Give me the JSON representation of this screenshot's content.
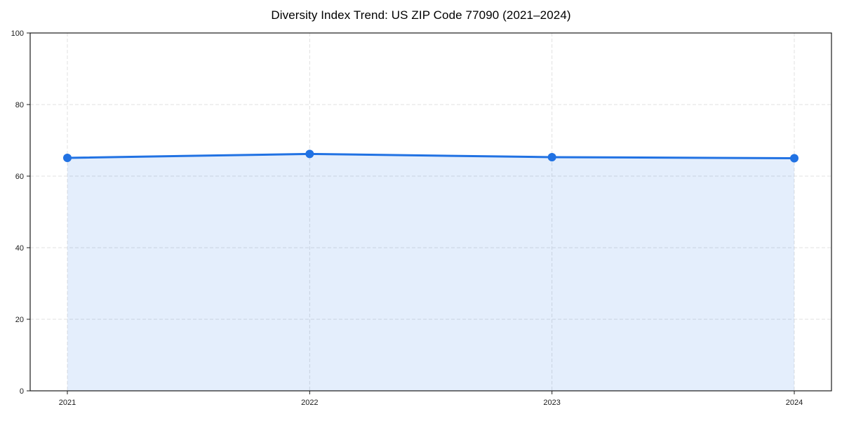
{
  "chart_data": {
    "type": "area",
    "title": "Diversity Index Trend: US ZIP Code 77090 (2021–2024)",
    "x": [
      2021,
      2022,
      2023,
      2024
    ],
    "x_tick_labels": [
      "2021",
      "2022",
      "2023",
      "2024"
    ],
    "series": [
      {
        "name": "Diversity Index",
        "values": [
          65.1,
          66.2,
          65.3,
          65.0
        ]
      }
    ],
    "ylim": [
      0,
      100
    ],
    "yticks": [
      0,
      20,
      40,
      60,
      80,
      100
    ],
    "ytick_labels": [
      "0",
      "20",
      "40",
      "60",
      "80",
      "100"
    ],
    "xlabel": "",
    "ylabel": "",
    "legend_position": "none",
    "grid": "dashed-both-axes",
    "marker": "circle",
    "colors": {
      "line": "#2172e3",
      "marker": "#2172e3",
      "area_fill": "rgba(33,114,227,0.12)",
      "gridline": "#e0e0e0",
      "axis": "#1a1a1a",
      "tick_label": "#1a1a1a",
      "title": "#000000",
      "background": "#ffffff"
    }
  }
}
